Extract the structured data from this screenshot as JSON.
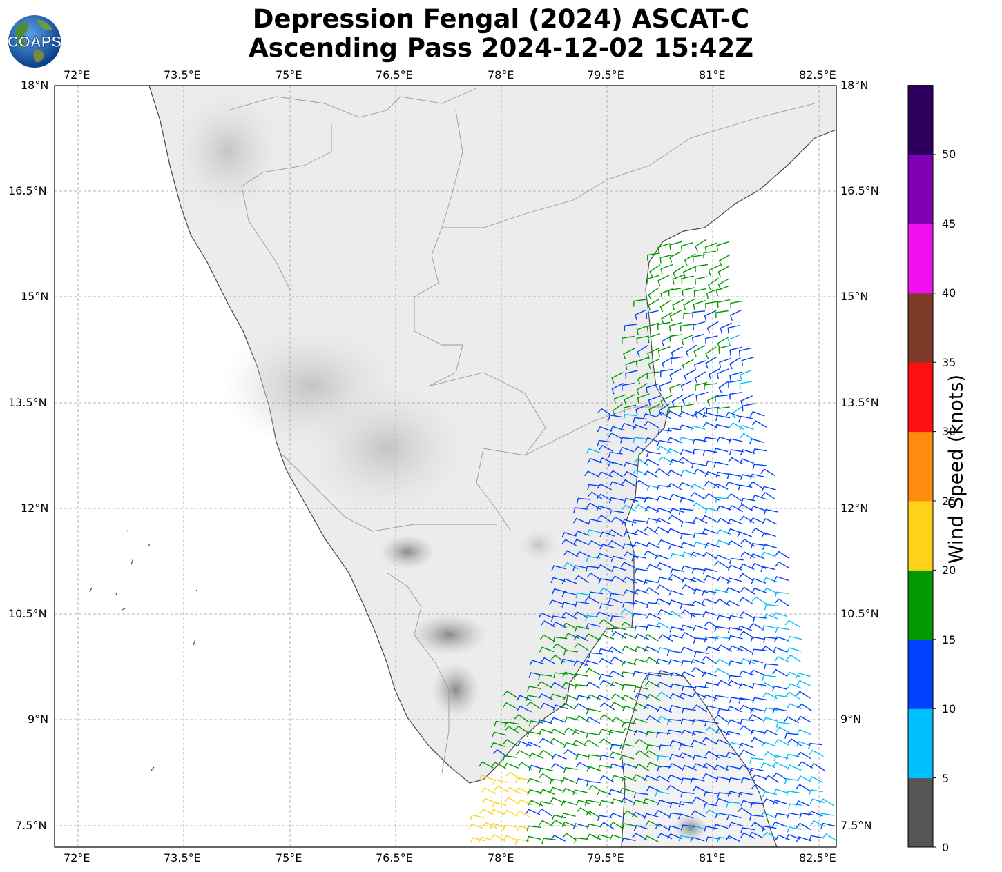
{
  "title": {
    "line1": "Depression Fengal (2024) ASCAT-C",
    "line2": "Ascending Pass 2024-12-02 15:42Z"
  },
  "logo": {
    "text": "COAPS"
  },
  "map": {
    "lon_range": [
      71.65,
      82.75
    ],
    "lat_range": [
      7.3,
      18.0
    ],
    "lon_ticks": [
      "72°E",
      "73.5°E",
      "75°E",
      "76.5°E",
      "78°E",
      "79.5°E",
      "81°E",
      "82.5°E"
    ],
    "lat_ticks": [
      "18°N",
      "16.5°N",
      "15°N",
      "13.5°N",
      "12°N",
      "10.5°N",
      "9°N",
      "7.5°N"
    ],
    "gridlines": true,
    "background": "grayscale terrain",
    "wind_barbs": "ASCAT-C wind barbs colored by speed"
  },
  "colorbar": {
    "label": "Wind Speed (knots)",
    "ticks": [
      "0",
      "5",
      "10",
      "15",
      "20",
      "25",
      "30",
      "35",
      "40",
      "45",
      "50"
    ],
    "colors": [
      "#555555",
      "#00bfff",
      "#0040ff",
      "#009900",
      "#ffd21a",
      "#ff8c0f",
      "#ff1010",
      "#7d3a28",
      "#f010f0",
      "#7f00b5",
      "#2d0060"
    ]
  }
}
